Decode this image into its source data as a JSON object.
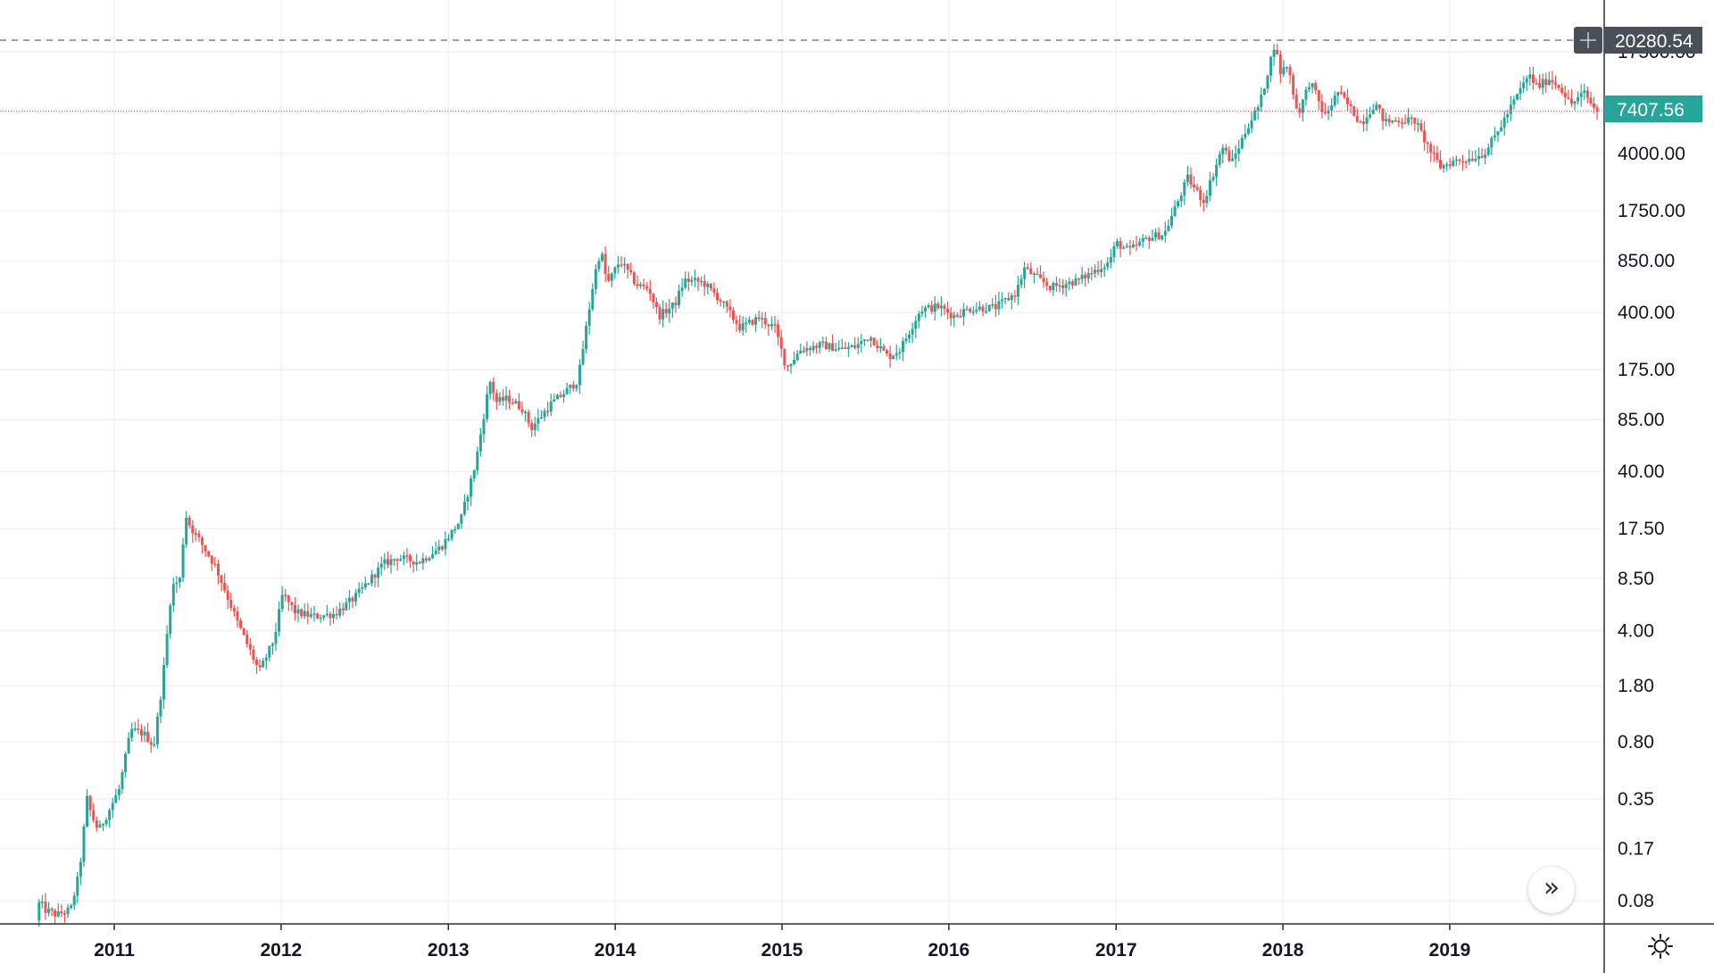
{
  "chart_data": {
    "type": "candlestick",
    "scale": "log",
    "grid": true,
    "price_axis": {
      "ticks": [
        {
          "label": "17500.00",
          "value": 17500
        },
        {
          "label": "4000.00",
          "value": 4000
        },
        {
          "label": "1750.00",
          "value": 1750
        },
        {
          "label": "850.00",
          "value": 850
        },
        {
          "label": "400.00",
          "value": 400
        },
        {
          "label": "175.00",
          "value": 175
        },
        {
          "label": "85.00",
          "value": 85
        },
        {
          "label": "40.00",
          "value": 40
        },
        {
          "label": "17.50",
          "value": 17.5
        },
        {
          "label": "8.50",
          "value": 8.5
        },
        {
          "label": "4.00",
          "value": 4
        },
        {
          "label": "1.80",
          "value": 1.8
        },
        {
          "label": "0.80",
          "value": 0.8
        },
        {
          "label": "0.35",
          "value": 0.35
        },
        {
          "label": "0.17",
          "value": 0.17
        },
        {
          "label": "0.08",
          "value": 0.08
        }
      ]
    },
    "time_axis": {
      "ticks": [
        "2011",
        "2012",
        "2013",
        "2014",
        "2015",
        "2016",
        "2017",
        "2018",
        "2019"
      ]
    },
    "crosshair_price": {
      "label": "20280.54",
      "value": 20280.54
    },
    "last_price": {
      "label": "7407.56",
      "value": 7407.56
    },
    "series_path": [
      [
        "2010-07-17",
        0.06
      ],
      [
        "2010-07-25",
        0.08
      ],
      [
        "2010-08-05",
        0.07
      ],
      [
        "2010-09-01",
        0.065
      ],
      [
        "2010-10-01",
        0.07
      ],
      [
        "2010-10-20",
        0.12
      ],
      [
        "2010-11-06",
        0.35
      ],
      [
        "2010-11-15",
        0.28
      ],
      [
        "2010-12-01",
        0.22
      ],
      [
        "2010-12-20",
        0.28
      ],
      [
        "2011-01-15",
        0.4
      ],
      [
        "2011-02-10",
        0.95
      ],
      [
        "2011-03-10",
        0.9
      ],
      [
        "2011-04-01",
        0.75
      ],
      [
        "2011-04-20",
        1.9
      ],
      [
        "2011-05-10",
        7.5
      ],
      [
        "2011-05-30",
        8.5
      ],
      [
        "2011-06-08",
        22
      ],
      [
        "2011-06-20",
        18
      ],
      [
        "2011-07-15",
        14
      ],
      [
        "2011-08-15",
        10
      ],
      [
        "2011-09-01",
        7.5
      ],
      [
        "2011-10-01",
        4.5
      ],
      [
        "2011-11-18",
        2.2
      ],
      [
        "2011-12-20",
        3.5
      ],
      [
        "2012-01-08",
        6.8
      ],
      [
        "2012-02-05",
        5.2
      ],
      [
        "2012-03-15",
        4.9
      ],
      [
        "2012-05-01",
        5.1
      ],
      [
        "2012-06-15",
        6.5
      ],
      [
        "2012-08-15",
        10.5
      ],
      [
        "2012-09-15",
        11.5
      ],
      [
        "2012-11-01",
        10.8
      ],
      [
        "2012-12-20",
        13.5
      ],
      [
        "2013-02-01",
        20
      ],
      [
        "2013-03-05",
        45
      ],
      [
        "2013-04-05",
        150
      ],
      [
        "2013-04-20",
        110
      ],
      [
        "2013-05-15",
        115
      ],
      [
        "2013-06-15",
        100
      ],
      [
        "2013-07-05",
        75
      ],
      [
        "2013-08-15",
        105
      ],
      [
        "2013-09-15",
        125
      ],
      [
        "2013-10-15",
        150
      ],
      [
        "2013-11-20",
        680
      ],
      [
        "2013-12-04",
        1000
      ],
      [
        "2013-12-18",
        600
      ],
      [
        "2014-01-15",
        850
      ],
      [
        "2014-02-20",
        600
      ],
      [
        "2014-03-20",
        560
      ],
      [
        "2014-04-10",
        380
      ],
      [
        "2014-05-15",
        450
      ],
      [
        "2014-06-05",
        640
      ],
      [
        "2014-07-15",
        620
      ],
      [
        "2014-08-20",
        490
      ],
      [
        "2014-10-05",
        320
      ],
      [
        "2014-11-15",
        370
      ],
      [
        "2014-12-20",
        320
      ],
      [
        "2015-01-14",
        180
      ],
      [
        "2015-02-15",
        235
      ],
      [
        "2015-04-01",
        250
      ],
      [
        "2015-05-15",
        235
      ],
      [
        "2015-06-15",
        245
      ],
      [
        "2015-07-15",
        285
      ],
      [
        "2015-08-25",
        210
      ],
      [
        "2015-09-20",
        235
      ],
      [
        "2015-11-04",
        420
      ],
      [
        "2015-12-15",
        435
      ],
      [
        "2016-01-15",
        380
      ],
      [
        "2016-02-20",
        425
      ],
      [
        "2016-04-15",
        430
      ],
      [
        "2016-05-30",
        530
      ],
      [
        "2016-06-18",
        760
      ],
      [
        "2016-07-15",
        660
      ],
      [
        "2016-08-15",
        575
      ],
      [
        "2016-10-15",
        640
      ],
      [
        "2016-12-20",
        830
      ],
      [
        "2017-01-05",
        1100
      ],
      [
        "2017-02-01",
        975
      ],
      [
        "2017-03-15",
        1180
      ],
      [
        "2017-04-20",
        1250
      ],
      [
        "2017-06-10",
        2800
      ],
      [
        "2017-07-15",
        2000
      ],
      [
        "2017-08-25",
        4400
      ],
      [
        "2017-09-15",
        3500
      ],
      [
        "2017-10-20",
        6000
      ],
      [
        "2017-11-15",
        8200
      ],
      [
        "2017-12-17",
        19500
      ],
      [
        "2017-12-30",
        13000
      ],
      [
        "2018-01-15",
        14500
      ],
      [
        "2018-02-06",
        7000
      ],
      [
        "2018-03-05",
        11500
      ],
      [
        "2018-04-06",
        6800
      ],
      [
        "2018-05-05",
        9800
      ],
      [
        "2018-06-25",
        6200
      ],
      [
        "2018-07-25",
        8300
      ],
      [
        "2018-08-15",
        6300
      ],
      [
        "2018-09-15",
        6500
      ],
      [
        "2018-10-20",
        6450
      ],
      [
        "2018-11-20",
        4300
      ],
      [
        "2018-12-15",
        3300
      ],
      [
        "2019-01-15",
        3600
      ],
      [
        "2019-02-15",
        3700
      ],
      [
        "2019-03-20",
        4000
      ],
      [
        "2019-04-15",
        5200
      ],
      [
        "2019-05-20",
        8000
      ],
      [
        "2019-06-26",
        12500
      ],
      [
        "2019-07-15",
        10500
      ],
      [
        "2019-08-10",
        11800
      ],
      [
        "2019-09-05",
        10400
      ],
      [
        "2019-09-25",
        8100
      ],
      [
        "2019-10-26",
        9600
      ],
      [
        "2019-11-20",
        7407.56
      ]
    ]
  },
  "ui": {
    "scroll_button_glyph": "»",
    "settings_icon": "gear-icon",
    "colors": {
      "up": "#26a69a",
      "down": "#ef5350",
      "grid": "#f0f3fa",
      "label_dark": "#4a4e59"
    }
  }
}
